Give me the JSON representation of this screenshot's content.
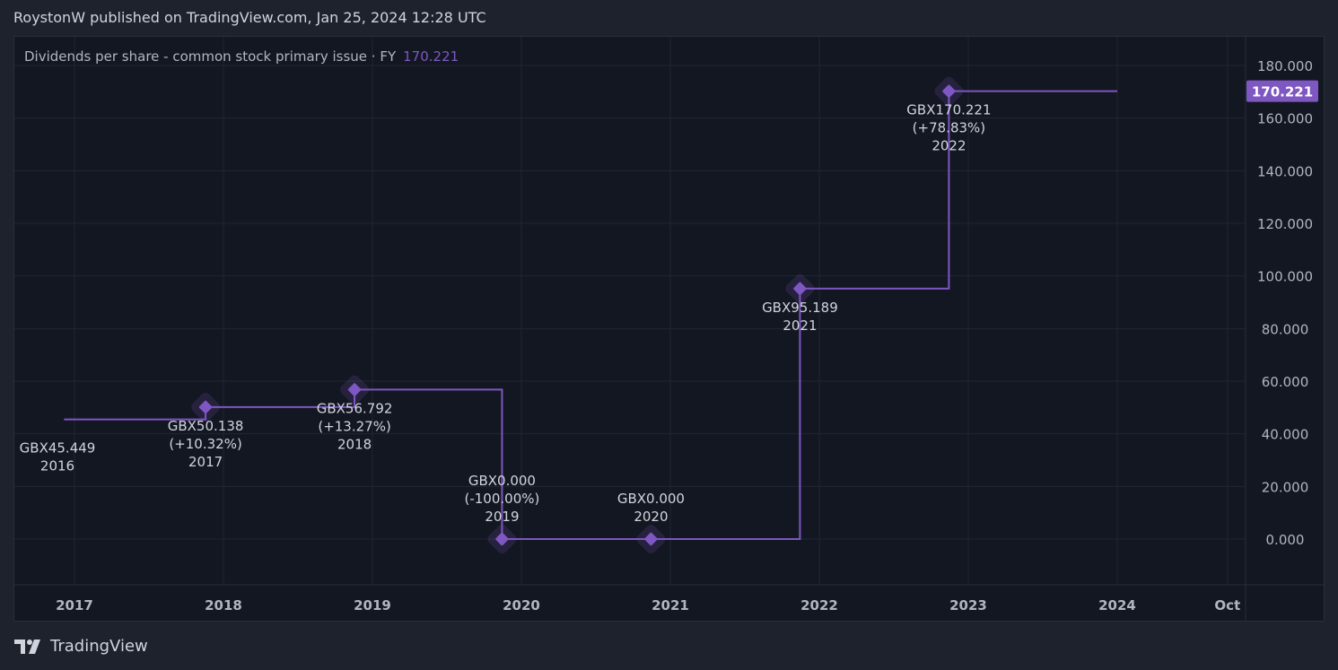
{
  "header": {
    "published": "RoystonW published on TradingView.com, Jan 25, 2024 12:28 UTC"
  },
  "legend": {
    "title": "Dividends per share - common stock primary issue · FY",
    "value": "170.221"
  },
  "brand": {
    "name": "TradingView"
  },
  "colors": {
    "line": "#7e57c2",
    "bg": "#131722",
    "outer": "#1e222d",
    "grid": "#222632"
  },
  "chart_data": {
    "type": "line",
    "step": true,
    "title": "Dividends per share - common stock primary issue · FY",
    "currency": "GBX",
    "start": {
      "x": 2016.93,
      "y": 45.449
    },
    "end_x": 2024.0,
    "points": [
      {
        "x": 2016.93,
        "y": 45.449,
        "label": "GBX45.449",
        "change": "",
        "fy": "2016",
        "marker": false
      },
      {
        "x": 2017.88,
        "y": 50.138,
        "label": "GBX50.138",
        "change": "(+10.32%)",
        "fy": "2017",
        "marker": true
      },
      {
        "x": 2018.88,
        "y": 56.792,
        "label": "GBX56.792",
        "change": "(+13.27%)",
        "fy": "2018",
        "marker": true
      },
      {
        "x": 2019.87,
        "y": 0.0,
        "label": "GBX0.000",
        "change": "(-100.00%)",
        "fy": "2019",
        "marker": true
      },
      {
        "x": 2020.87,
        "y": 0.0,
        "label": "GBX0.000",
        "change": "",
        "fy": "2020",
        "marker": true
      },
      {
        "x": 2021.87,
        "y": 95.189,
        "label": "GBX95.189",
        "change": "",
        "fy": "2021",
        "marker": true
      },
      {
        "x": 2022.87,
        "y": 170.221,
        "label": "GBX170.221",
        "change": "(+78.83%)",
        "fy": "2022",
        "marker": true
      }
    ],
    "ylim": [
      -17,
      187
    ],
    "xlim": [
      2016.6,
      2024.75
    ],
    "yticks": [
      {
        "v": 180,
        "label": "180.000"
      },
      {
        "v": 160,
        "label": "160.000"
      },
      {
        "v": 140,
        "label": "140.000"
      },
      {
        "v": 120,
        "label": "120.000"
      },
      {
        "v": 100,
        "label": "100.000"
      },
      {
        "v": 80,
        "label": "80.000"
      },
      {
        "v": 60,
        "label": "60.000"
      },
      {
        "v": 40,
        "label": "40.000"
      },
      {
        "v": 20,
        "label": "20.000"
      },
      {
        "v": 0,
        "label": "0.000"
      }
    ],
    "xticks": [
      {
        "v": 2017,
        "label": "2017"
      },
      {
        "v": 2018,
        "label": "2018"
      },
      {
        "v": 2019,
        "label": "2019"
      },
      {
        "v": 2020,
        "label": "2020"
      },
      {
        "v": 2021,
        "label": "2021"
      },
      {
        "v": 2022,
        "label": "2022"
      },
      {
        "v": 2023,
        "label": "2023"
      },
      {
        "v": 2024,
        "label": "2024"
      },
      {
        "v": 2024.74,
        "label": "Oct"
      }
    ],
    "last_value_label": "170.221",
    "grid": true
  }
}
